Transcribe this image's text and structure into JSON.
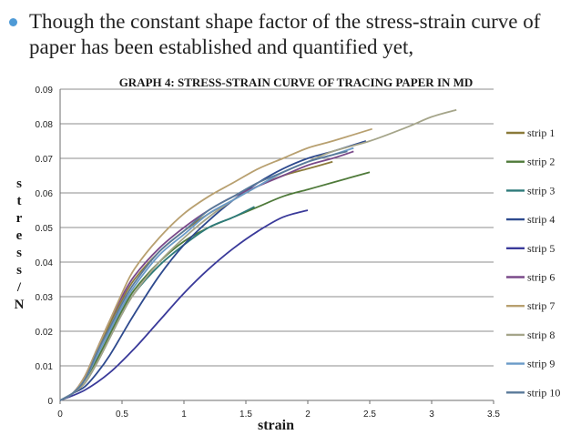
{
  "slide": {
    "bullet_text": "Though the constant shape factor of the stress-strain curve of paper has been established and quantified yet,"
  },
  "chart_data": {
    "type": "line",
    "title": "GRAPH 4: STRESS-STRAIN CURVE OF TRACING PAPER IN MD",
    "xlabel": "strain",
    "ylabel": "stress/N",
    "xlim": [
      0,
      3.5
    ],
    "ylim": [
      0,
      0.09
    ],
    "x_ticks": [
      "0",
      "0.5",
      "1",
      "1.5",
      "2",
      "2.5",
      "3",
      "3.5"
    ],
    "y_ticks": [
      "0",
      "0.01",
      "0.02",
      "0.03",
      "0.04",
      "0.05",
      "0.06",
      "0.07",
      "0.08",
      "0.09"
    ],
    "grid": "horizontal",
    "legend_position": "right",
    "series": [
      {
        "name": "strip 1",
        "color": "#8b7a3a",
        "points": [
          [
            0,
            0
          ],
          [
            0.1,
            0.002
          ],
          [
            0.2,
            0.006
          ],
          [
            0.3,
            0.014
          ],
          [
            0.4,
            0.022
          ],
          [
            0.5,
            0.029
          ],
          [
            0.6,
            0.035
          ],
          [
            0.8,
            0.043
          ],
          [
            1.0,
            0.049
          ],
          [
            1.2,
            0.054
          ],
          [
            1.4,
            0.058
          ],
          [
            1.6,
            0.062
          ],
          [
            1.8,
            0.065
          ],
          [
            2.0,
            0.067
          ],
          [
            2.2,
            0.069
          ]
        ]
      },
      {
        "name": "strip 2",
        "color": "#4f7a3a",
        "points": [
          [
            0,
            0
          ],
          [
            0.1,
            0.002
          ],
          [
            0.2,
            0.006
          ],
          [
            0.3,
            0.012
          ],
          [
            0.4,
            0.019
          ],
          [
            0.5,
            0.026
          ],
          [
            0.6,
            0.032
          ],
          [
            0.8,
            0.04
          ],
          [
            1.0,
            0.046
          ],
          [
            1.2,
            0.05
          ],
          [
            1.4,
            0.053
          ],
          [
            1.6,
            0.056
          ],
          [
            1.8,
            0.059
          ],
          [
            2.0,
            0.061
          ],
          [
            2.2,
            0.063
          ],
          [
            2.5,
            0.066
          ]
        ]
      },
      {
        "name": "strip 3",
        "color": "#2d7a7a",
        "points": [
          [
            0,
            0
          ],
          [
            0.1,
            0.002
          ],
          [
            0.2,
            0.005
          ],
          [
            0.3,
            0.011
          ],
          [
            0.4,
            0.018
          ],
          [
            0.5,
            0.025
          ],
          [
            0.6,
            0.031
          ],
          [
            0.8,
            0.039
          ],
          [
            1.0,
            0.045
          ],
          [
            1.2,
            0.05
          ],
          [
            1.4,
            0.053
          ],
          [
            1.57,
            0.056
          ]
        ]
      },
      {
        "name": "strip 4",
        "color": "#2e4a8e",
        "points": [
          [
            0,
            0
          ],
          [
            0.1,
            0.002
          ],
          [
            0.2,
            0.004
          ],
          [
            0.3,
            0.008
          ],
          [
            0.4,
            0.013
          ],
          [
            0.5,
            0.019
          ],
          [
            0.6,
            0.025
          ],
          [
            0.8,
            0.036
          ],
          [
            1.0,
            0.045
          ],
          [
            1.2,
            0.052
          ],
          [
            1.4,
            0.058
          ],
          [
            1.6,
            0.063
          ],
          [
            1.8,
            0.067
          ],
          [
            2.0,
            0.07
          ],
          [
            2.2,
            0.072
          ],
          [
            2.47,
            0.075
          ]
        ]
      },
      {
        "name": "strip 5",
        "color": "#3a3a9a",
        "points": [
          [
            0,
            0
          ],
          [
            0.2,
            0.003
          ],
          [
            0.4,
            0.008
          ],
          [
            0.6,
            0.015
          ],
          [
            0.8,
            0.023
          ],
          [
            1.0,
            0.031
          ],
          [
            1.2,
            0.038
          ],
          [
            1.4,
            0.044
          ],
          [
            1.6,
            0.049
          ],
          [
            1.8,
            0.053
          ],
          [
            2.0,
            0.055
          ]
        ]
      },
      {
        "name": "strip 6",
        "color": "#7a4a8a",
        "points": [
          [
            0,
            0
          ],
          [
            0.1,
            0.002
          ],
          [
            0.2,
            0.007
          ],
          [
            0.3,
            0.015
          ],
          [
            0.4,
            0.023
          ],
          [
            0.5,
            0.03
          ],
          [
            0.6,
            0.036
          ],
          [
            0.8,
            0.044
          ],
          [
            1.0,
            0.05
          ],
          [
            1.2,
            0.055
          ],
          [
            1.4,
            0.059
          ],
          [
            1.6,
            0.062
          ],
          [
            1.8,
            0.065
          ],
          [
            2.0,
            0.068
          ],
          [
            2.2,
            0.07
          ],
          [
            2.37,
            0.072
          ]
        ]
      },
      {
        "name": "strip 7",
        "color": "#b8a070",
        "points": [
          [
            0,
            0
          ],
          [
            0.1,
            0.002
          ],
          [
            0.2,
            0.007
          ],
          [
            0.3,
            0.015
          ],
          [
            0.4,
            0.023
          ],
          [
            0.5,
            0.031
          ],
          [
            0.6,
            0.038
          ],
          [
            0.8,
            0.047
          ],
          [
            1.0,
            0.054
          ],
          [
            1.2,
            0.059
          ],
          [
            1.4,
            0.063
          ],
          [
            1.6,
            0.067
          ],
          [
            1.8,
            0.07
          ],
          [
            2.0,
            0.073
          ],
          [
            2.2,
            0.075
          ],
          [
            2.52,
            0.0785
          ]
        ]
      },
      {
        "name": "strip 8",
        "color": "#a5a58a",
        "points": [
          [
            0,
            0
          ],
          [
            0.1,
            0.002
          ],
          [
            0.2,
            0.005
          ],
          [
            0.3,
            0.011
          ],
          [
            0.4,
            0.018
          ],
          [
            0.5,
            0.025
          ],
          [
            0.6,
            0.031
          ],
          [
            0.8,
            0.04
          ],
          [
            1.0,
            0.047
          ],
          [
            1.2,
            0.053
          ],
          [
            1.4,
            0.058
          ],
          [
            1.6,
            0.062
          ],
          [
            1.8,
            0.066
          ],
          [
            2.0,
            0.069
          ],
          [
            2.2,
            0.072
          ],
          [
            2.5,
            0.075
          ],
          [
            2.8,
            0.079
          ],
          [
            3.0,
            0.082
          ],
          [
            3.2,
            0.084
          ]
        ]
      },
      {
        "name": "strip 9",
        "color": "#6a9ac8",
        "points": [
          [
            0,
            0
          ],
          [
            0.1,
            0.002
          ],
          [
            0.2,
            0.006
          ],
          [
            0.3,
            0.013
          ],
          [
            0.4,
            0.02
          ],
          [
            0.5,
            0.027
          ],
          [
            0.6,
            0.033
          ],
          [
            0.8,
            0.042
          ],
          [
            1.0,
            0.048
          ],
          [
            1.2,
            0.054
          ],
          [
            1.4,
            0.058
          ],
          [
            1.6,
            0.062
          ],
          [
            1.8,
            0.066
          ],
          [
            2.0,
            0.069
          ],
          [
            2.2,
            0.071
          ],
          [
            2.37,
            0.073
          ]
        ]
      },
      {
        "name": "strip 10",
        "color": "#5a7a9a",
        "points": [
          [
            0,
            0
          ],
          [
            0.1,
            0.002
          ],
          [
            0.2,
            0.006
          ],
          [
            0.3,
            0.014
          ],
          [
            0.4,
            0.021
          ],
          [
            0.5,
            0.028
          ],
          [
            0.6,
            0.034
          ],
          [
            0.8,
            0.043
          ],
          [
            1.0,
            0.049
          ],
          [
            1.2,
            0.055
          ],
          [
            1.4,
            0.059
          ],
          [
            1.6,
            0.063
          ],
          [
            1.8,
            0.066
          ],
          [
            2.0,
            0.069
          ],
          [
            2.2,
            0.071
          ],
          [
            2.32,
            0.072
          ]
        ]
      }
    ]
  }
}
